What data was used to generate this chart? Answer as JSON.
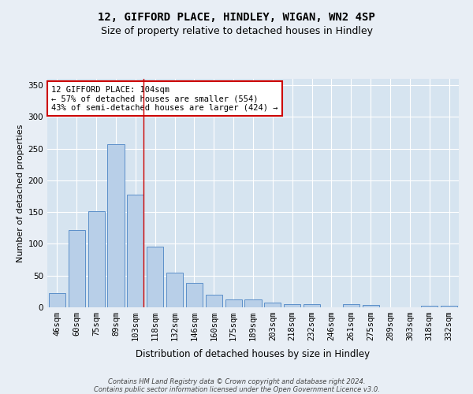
{
  "title1": "12, GIFFORD PLACE, HINDLEY, WIGAN, WN2 4SP",
  "title2": "Size of property relative to detached houses in Hindley",
  "xlabel": "Distribution of detached houses by size in Hindley",
  "ylabel": "Number of detached properties",
  "categories": [
    "46sqm",
    "60sqm",
    "75sqm",
    "89sqm",
    "103sqm",
    "118sqm",
    "132sqm",
    "146sqm",
    "160sqm",
    "175sqm",
    "189sqm",
    "203sqm",
    "218sqm",
    "232sqm",
    "246sqm",
    "261sqm",
    "275sqm",
    "289sqm",
    "303sqm",
    "318sqm",
    "332sqm"
  ],
  "values": [
    22,
    122,
    152,
    257,
    178,
    95,
    55,
    38,
    20,
    12,
    13,
    7,
    5,
    5,
    0,
    5,
    4,
    0,
    0,
    2,
    2
  ],
  "bar_color": "#b8cfe8",
  "bar_edge_color": "#5b8fc9",
  "highlight_bar_index": 4,
  "highlight_line_color": "#cc0000",
  "annotation_text": "12 GIFFORD PLACE: 104sqm\n← 57% of detached houses are smaller (554)\n43% of semi-detached houses are larger (424) →",
  "annotation_box_color": "#ffffff",
  "annotation_box_edge_color": "#cc0000",
  "ylim": [
    0,
    360
  ],
  "yticks": [
    0,
    50,
    100,
    150,
    200,
    250,
    300,
    350
  ],
  "background_color": "#e8eef5",
  "plot_background_color": "#d6e4f0",
  "grid_color": "#ffffff",
  "title1_fontsize": 10,
  "title2_fontsize": 9,
  "xlabel_fontsize": 8.5,
  "ylabel_fontsize": 8,
  "tick_fontsize": 7.5,
  "ann_fontsize": 7.5,
  "footer_text": "Contains HM Land Registry data © Crown copyright and database right 2024.\nContains public sector information licensed under the Open Government Licence v3.0."
}
